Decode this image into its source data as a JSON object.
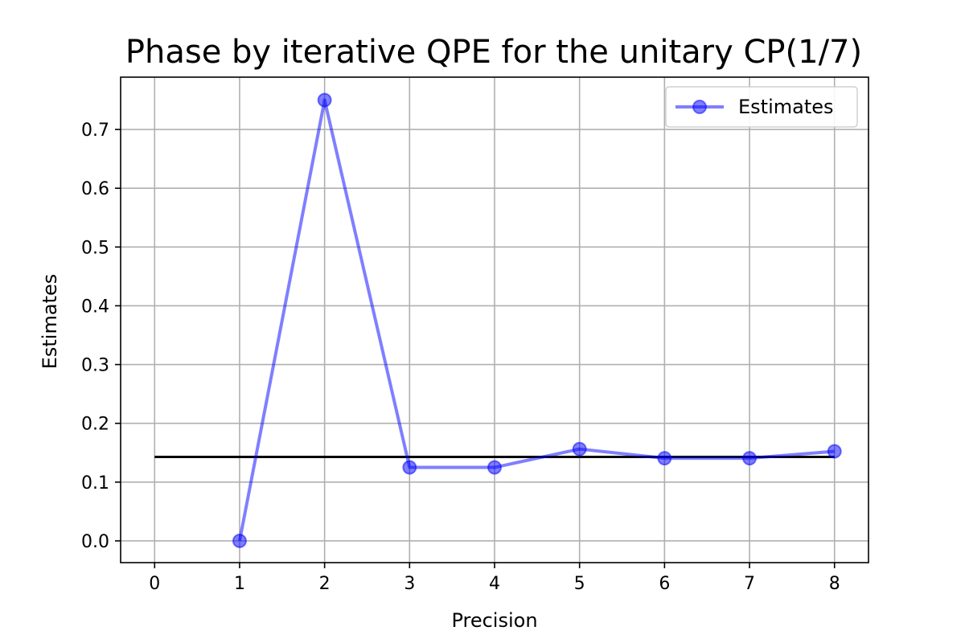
{
  "chart_data": {
    "type": "line",
    "title": "Phase by iterative QPE for the unitary CP(1/7)",
    "xlabel": "Precision",
    "ylabel": "Estimates",
    "xlim": [
      -0.4,
      8.4
    ],
    "ylim": [
      -0.037,
      0.789
    ],
    "xticks": [
      0,
      1,
      2,
      3,
      4,
      5,
      6,
      7,
      8
    ],
    "yticks": [
      0.0,
      0.1,
      0.2,
      0.3,
      0.4,
      0.5,
      0.6,
      0.7
    ],
    "ytick_labels": [
      "0.0",
      "0.1",
      "0.2",
      "0.3",
      "0.4",
      "0.5",
      "0.6",
      "0.7"
    ],
    "grid": true,
    "legend_position": "top-right",
    "series": [
      {
        "name": "Estimates",
        "color": "#0000ff",
        "opacity": 0.5,
        "marker": "circle",
        "x": [
          1,
          2,
          3,
          4,
          5,
          6,
          7,
          8
        ],
        "y": [
          0.0,
          0.75,
          0.125,
          0.125,
          0.15625,
          0.140625,
          0.140625,
          0.152344
        ]
      }
    ],
    "reference_line": {
      "color": "#000000",
      "x": [
        0,
        8
      ],
      "y": [
        0.142857,
        0.142857
      ]
    }
  }
}
